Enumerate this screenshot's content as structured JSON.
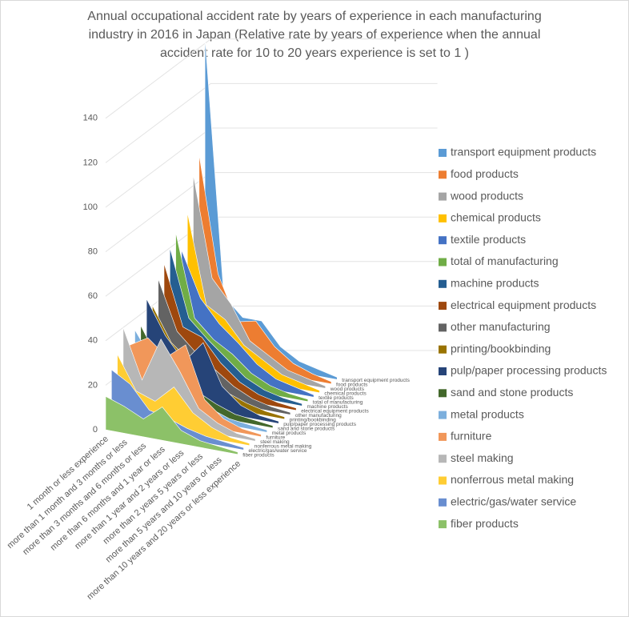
{
  "chart_data": {
    "type": "area3d",
    "title": [
      "Annual occupational accident rate by years of experience  in each manufacturing",
      "industry in 2016 in Japan (Relative rate by years of experience  when the annual",
      "accident rate for 10 to 20 years experience  is set to 1 )"
    ],
    "categories": [
      "1 month or less experience",
      "more than 1 month and 3 months or less",
      "more than 3 months and 6 months or less",
      "more than 6 months and 1 year or less",
      "more than 1 year and 2 years or less",
      "more than 2 years 5 years or less",
      "more than 5 years and 10 years or less",
      "more than 10 years and 20 years or less experience"
    ],
    "ylim": [
      0,
      150
    ],
    "yticks": [
      0,
      20,
      40,
      60,
      80,
      100,
      120,
      140
    ],
    "grid": true,
    "series": [
      {
        "name": "transport equipment products",
        "color": "#5B9BD5",
        "values": [
          143,
          28,
          20,
          20,
          10,
          5,
          3,
          1
        ]
      },
      {
        "name": "food products",
        "color": "#ED7D31",
        "values": [
          92,
          40,
          20,
          22,
          12,
          6,
          3,
          1
        ]
      },
      {
        "name": "wood products",
        "color": "#A5A5A5",
        "values": [
          85,
          40,
          30,
          15,
          10,
          5,
          3,
          1
        ]
      },
      {
        "name": "chemical products",
        "color": "#FFC000",
        "values": [
          70,
          30,
          25,
          15,
          10,
          5,
          3,
          1
        ]
      },
      {
        "name": "textile products",
        "color": "#4472C4",
        "values": [
          55,
          35,
          25,
          18,
          10,
          5,
          3,
          1
        ]
      },
      {
        "name": "total of manufacturing",
        "color": "#70AD47",
        "values": [
          65,
          28,
          20,
          15,
          8,
          4,
          2,
          1
        ]
      },
      {
        "name": "machine products",
        "color": "#255E91",
        "values": [
          60,
          30,
          22,
          15,
          8,
          4,
          2,
          1
        ]
      },
      {
        "name": "electrical equipment products",
        "color": "#9E480E",
        "values": [
          55,
          28,
          25,
          15,
          8,
          4,
          2,
          1
        ]
      },
      {
        "name": "other manufacturing",
        "color": "#636363",
        "values": [
          50,
          28,
          20,
          14,
          8,
          4,
          2,
          1
        ]
      },
      {
        "name": "printing/bookbinding",
        "color": "#997300",
        "values": [
          40,
          25,
          18,
          12,
          7,
          4,
          2,
          1
        ]
      },
      {
        "name": "pulp/paper processing products",
        "color": "#264478",
        "values": [
          45,
          30,
          20,
          30,
          12,
          5,
          2,
          1
        ]
      },
      {
        "name": "sand and stone products",
        "color": "#43682B",
        "values": [
          35,
          20,
          15,
          10,
          6,
          3,
          2,
          1
        ]
      },
      {
        "name": "metal products",
        "color": "#7CAFDD",
        "values": [
          35,
          22,
          16,
          10,
          6,
          3,
          2,
          1
        ]
      },
      {
        "name": "furniture",
        "color": "#F1975A",
        "values": [
          30,
          35,
          28,
          35,
          12,
          5,
          2,
          1
        ]
      },
      {
        "name": "steel making",
        "color": "#B7B7B7",
        "values": [
          40,
          18,
          38,
          25,
          10,
          5,
          2,
          1
        ]
      },
      {
        "name": "nonferrous metal making",
        "color": "#FFCD33",
        "values": [
          30,
          15,
          12,
          20,
          10,
          5,
          2,
          1
        ]
      },
      {
        "name": "electric/gas/water service",
        "color": "#698ED0",
        "values": [
          25,
          20,
          10,
          8,
          5,
          3,
          2,
          1
        ]
      },
      {
        "name": "fiber products",
        "color": "#8CC168",
        "values": [
          15,
          12,
          8,
          15,
          6,
          3,
          2,
          1
        ]
      }
    ]
  }
}
